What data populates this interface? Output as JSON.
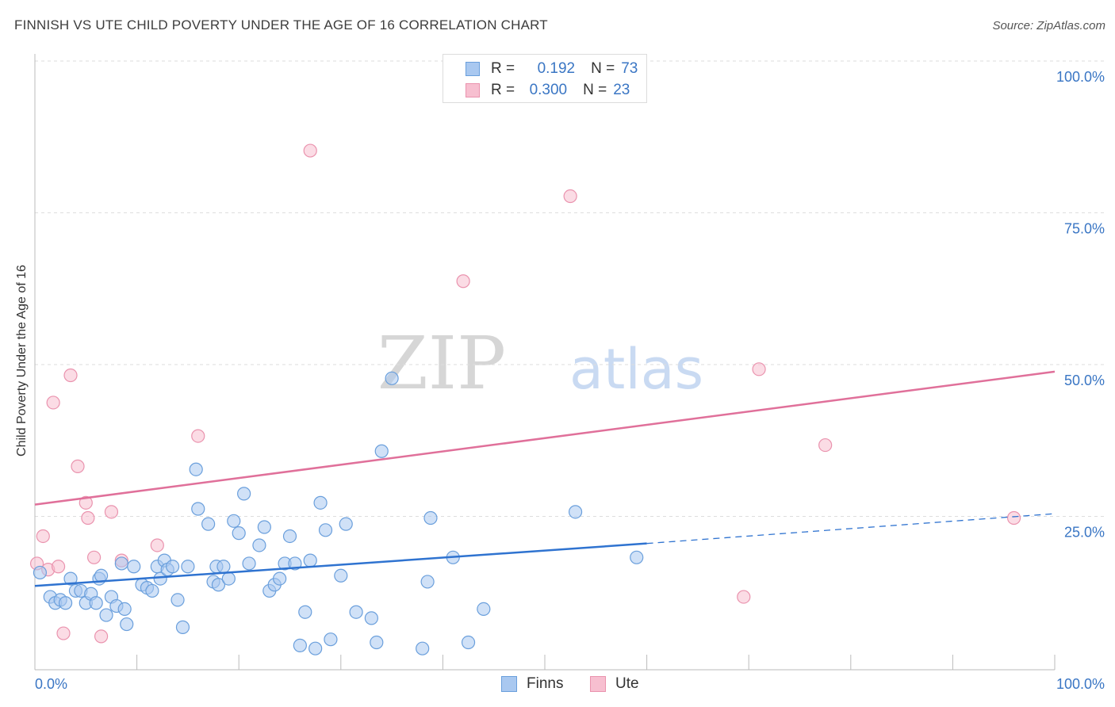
{
  "title": "FINNISH VS UTE CHILD POVERTY UNDER THE AGE OF 16 CORRELATION CHART",
  "source": "Source: ZipAtlas.com",
  "watermark": {
    "zip": "ZIP",
    "atlas": "atlas"
  },
  "legend": {
    "rows": [
      {
        "r_label": "R =",
        "r_value": "0.192",
        "n_label": "N =",
        "n_value": "73"
      },
      {
        "r_label": "R =",
        "r_value": "0.300",
        "n_label": "N =",
        "n_value": "23"
      }
    ]
  },
  "bottom_legend": {
    "finns": "Finns",
    "ute": "Ute"
  },
  "colors": {
    "finns_fill": "#a9c8f0",
    "finns_stroke": "#6a9fdc",
    "finns_line": "#2f73d0",
    "ute_fill": "#f7bfd0",
    "ute_stroke": "#ea93ae",
    "ute_line": "#e0709a",
    "axis_text": "#3a76c4",
    "grid": "#dddddd"
  },
  "chart_data": {
    "type": "scatter",
    "xlabel": "",
    "ylabel": "Child Poverty Under the Age of 16",
    "xlim": [
      0,
      100
    ],
    "ylim": [
      0,
      100
    ],
    "x_tick_labels": [
      "0.0%",
      "100.0%"
    ],
    "y_tick_labels": [
      "25.0%",
      "50.0%",
      "75.0%",
      "100.0%"
    ],
    "y_ticks": [
      25,
      50,
      75,
      100
    ],
    "grid": true,
    "legend_position": "top-center",
    "series": [
      {
        "name": "Finns",
        "points": [
          [
            0.5,
            16
          ],
          [
            1.5,
            12
          ],
          [
            2,
            11
          ],
          [
            2.5,
            11.5
          ],
          [
            3,
            11
          ],
          [
            3.5,
            15
          ],
          [
            4,
            13
          ],
          [
            4.5,
            13
          ],
          [
            5,
            11
          ],
          [
            5.5,
            12.5
          ],
          [
            6,
            11
          ],
          [
            6.3,
            15
          ],
          [
            6.5,
            15.5
          ],
          [
            7,
            9
          ],
          [
            7.5,
            12
          ],
          [
            8,
            10.5
          ],
          [
            8.5,
            17.5
          ],
          [
            8.8,
            10
          ],
          [
            9,
            7.5
          ],
          [
            9.7,
            17
          ],
          [
            10.5,
            14
          ],
          [
            11,
            13.5
          ],
          [
            11.5,
            13
          ],
          [
            12,
            17
          ],
          [
            12.3,
            15
          ],
          [
            12.7,
            18
          ],
          [
            13,
            16.5
          ],
          [
            13.5,
            17
          ],
          [
            14,
            11.5
          ],
          [
            14.5,
            7
          ],
          [
            15,
            17
          ],
          [
            15.8,
            33
          ],
          [
            16,
            26.5
          ],
          [
            17,
            24
          ],
          [
            17.5,
            14.5
          ],
          [
            17.8,
            17
          ],
          [
            18,
            14
          ],
          [
            18.5,
            17
          ],
          [
            19,
            15
          ],
          [
            19.5,
            24.5
          ],
          [
            20,
            22.5
          ],
          [
            20.5,
            29
          ],
          [
            21,
            17.5
          ],
          [
            22,
            20.5
          ],
          [
            22.5,
            23.5
          ],
          [
            23,
            13
          ],
          [
            23.5,
            14
          ],
          [
            24,
            15
          ],
          [
            24.5,
            17.5
          ],
          [
            25,
            22
          ],
          [
            25.5,
            17.5
          ],
          [
            26,
            4
          ],
          [
            26.5,
            9.5
          ],
          [
            27,
            18
          ],
          [
            27.5,
            3.5
          ],
          [
            28,
            27.5
          ],
          [
            28.5,
            23
          ],
          [
            29,
            5
          ],
          [
            30,
            15.5
          ],
          [
            30.5,
            24
          ],
          [
            31.5,
            9.5
          ],
          [
            33,
            8.5
          ],
          [
            33.5,
            4.5
          ],
          [
            34,
            36
          ],
          [
            35,
            48
          ],
          [
            38,
            3.5
          ],
          [
            38.5,
            14.5
          ],
          [
            38.8,
            25
          ],
          [
            41,
            18.5
          ],
          [
            42.5,
            4.5
          ],
          [
            44,
            10
          ],
          [
            53,
            26
          ],
          [
            59,
            18.5
          ]
        ]
      },
      {
        "name": "Ute",
        "points": [
          [
            0.2,
            17.5
          ],
          [
            0.8,
            22
          ],
          [
            1.3,
            16.5
          ],
          [
            1.8,
            44
          ],
          [
            2.3,
            17
          ],
          [
            2.8,
            6
          ],
          [
            3.5,
            48.5
          ],
          [
            4.2,
            33.5
          ],
          [
            5,
            27.5
          ],
          [
            5.2,
            25
          ],
          [
            5.8,
            18.5
          ],
          [
            6.5,
            5.5
          ],
          [
            7.5,
            26
          ],
          [
            8.5,
            18
          ],
          [
            12,
            20.5
          ],
          [
            16,
            38.5
          ],
          [
            27,
            85.5
          ],
          [
            42,
            64
          ],
          [
            52.5,
            78
          ],
          [
            69.5,
            12
          ],
          [
            71,
            49.5
          ],
          [
            77.5,
            37
          ],
          [
            96,
            25
          ]
        ]
      }
    ],
    "trendlines": [
      {
        "series": "Finns",
        "x": [
          0,
          60
        ],
        "y": [
          13.8,
          20.8
        ],
        "dashed_extension_to": [
          100,
          25.7
        ]
      },
      {
        "series": "Ute",
        "x": [
          0,
          100
        ],
        "y": [
          27.2,
          49.1
        ]
      }
    ]
  }
}
